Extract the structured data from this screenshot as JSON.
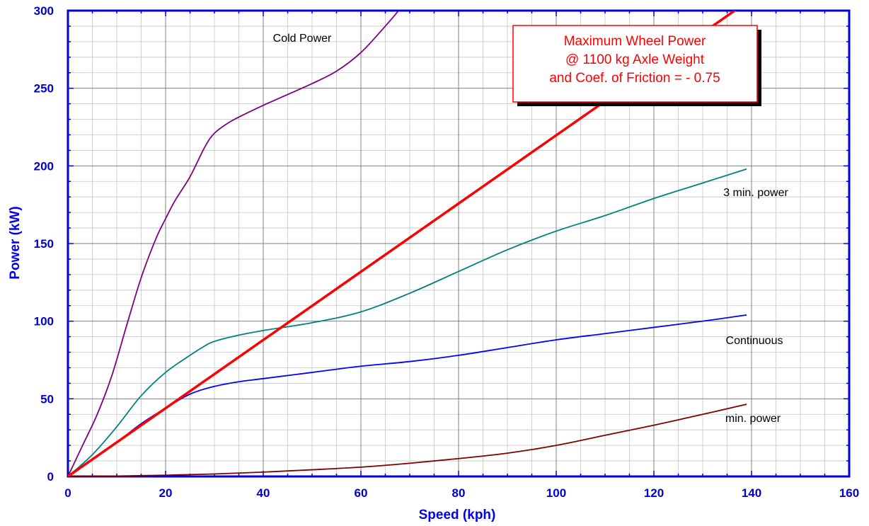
{
  "chart_data": {
    "type": "line",
    "xlabel": "Speed  (kph)",
    "ylabel": "Power  (kW)",
    "xlim": [
      0,
      160
    ],
    "ylim": [
      0,
      300
    ],
    "x_ticks": [
      "0",
      "20",
      "40",
      "60",
      "80",
      "100",
      "120",
      "140",
      "160"
    ],
    "y_ticks": [
      "0",
      "50",
      "100",
      "150",
      "200",
      "250",
      "300"
    ],
    "grid": true,
    "callout": {
      "lines": [
        "Maximum Wheel Power",
        "@ 1100 kg Axle Weight",
        "and Coef. of Friction = - 0.75"
      ]
    },
    "series": [
      {
        "name": "Cold Power",
        "color": "#800080",
        "points": [
          [
            0,
            0
          ],
          [
            3,
            20
          ],
          [
            6,
            40
          ],
          [
            9,
            65
          ],
          [
            12,
            97
          ],
          [
            15,
            128
          ],
          [
            18,
            153
          ],
          [
            20,
            166
          ],
          [
            22,
            178
          ],
          [
            25,
            193
          ],
          [
            28,
            212
          ],
          [
            30,
            221
          ],
          [
            33,
            228
          ],
          [
            36,
            233
          ],
          [
            40,
            239
          ],
          [
            45,
            246
          ],
          [
            50,
            253
          ],
          [
            55,
            261
          ],
          [
            60,
            273
          ],
          [
            65,
            290
          ],
          [
            68,
            301
          ]
        ]
      },
      {
        "name": "3 min. power",
        "color": "#008080",
        "points": [
          [
            0,
            0
          ],
          [
            5,
            14
          ],
          [
            10,
            32
          ],
          [
            15,
            52
          ],
          [
            20,
            67
          ],
          [
            25,
            78
          ],
          [
            28,
            84
          ],
          [
            30,
            87
          ],
          [
            35,
            91
          ],
          [
            40,
            94
          ],
          [
            50,
            99
          ],
          [
            60,
            106
          ],
          [
            70,
            118
          ],
          [
            80,
            132
          ],
          [
            90,
            146
          ],
          [
            100,
            158
          ],
          [
            110,
            168
          ],
          [
            120,
            179
          ],
          [
            130,
            189
          ],
          [
            139,
            198
          ]
        ]
      },
      {
        "name": "Continuous",
        "color": "#0000ff",
        "points": [
          [
            0,
            0
          ],
          [
            5,
            11
          ],
          [
            10,
            22
          ],
          [
            15,
            34
          ],
          [
            20,
            44
          ],
          [
            25,
            53
          ],
          [
            30,
            58
          ],
          [
            35,
            61
          ],
          [
            40,
            63
          ],
          [
            50,
            67
          ],
          [
            60,
            71
          ],
          [
            70,
            74
          ],
          [
            80,
            78
          ],
          [
            90,
            83
          ],
          [
            100,
            88
          ],
          [
            110,
            92
          ],
          [
            120,
            96
          ],
          [
            130,
            100
          ],
          [
            139,
            104
          ]
        ]
      },
      {
        "name": "min. power",
        "color": "#800000",
        "points": [
          [
            0,
            0
          ],
          [
            10,
            0.3
          ],
          [
            20,
            0.8
          ],
          [
            30,
            1.6
          ],
          [
            40,
            2.8
          ],
          [
            50,
            4.3
          ],
          [
            60,
            6
          ],
          [
            70,
            8.5
          ],
          [
            80,
            11.5
          ],
          [
            90,
            15
          ],
          [
            100,
            20
          ],
          [
            110,
            26.5
          ],
          [
            120,
            33
          ],
          [
            130,
            40
          ],
          [
            139,
            46.5
          ]
        ]
      },
      {
        "name": "Maximum Wheel Power",
        "color": "#ff0000",
        "points": [
          [
            0,
            0
          ],
          [
            137,
            301
          ]
        ]
      }
    ],
    "annotations": [
      {
        "text": "Cold Power",
        "series": "Cold Power"
      },
      {
        "text": "3 min. power",
        "series": "3 min. power"
      },
      {
        "text": "Continuous",
        "series": "Continuous"
      },
      {
        "text": "min. power",
        "series": "min. power"
      }
    ]
  }
}
